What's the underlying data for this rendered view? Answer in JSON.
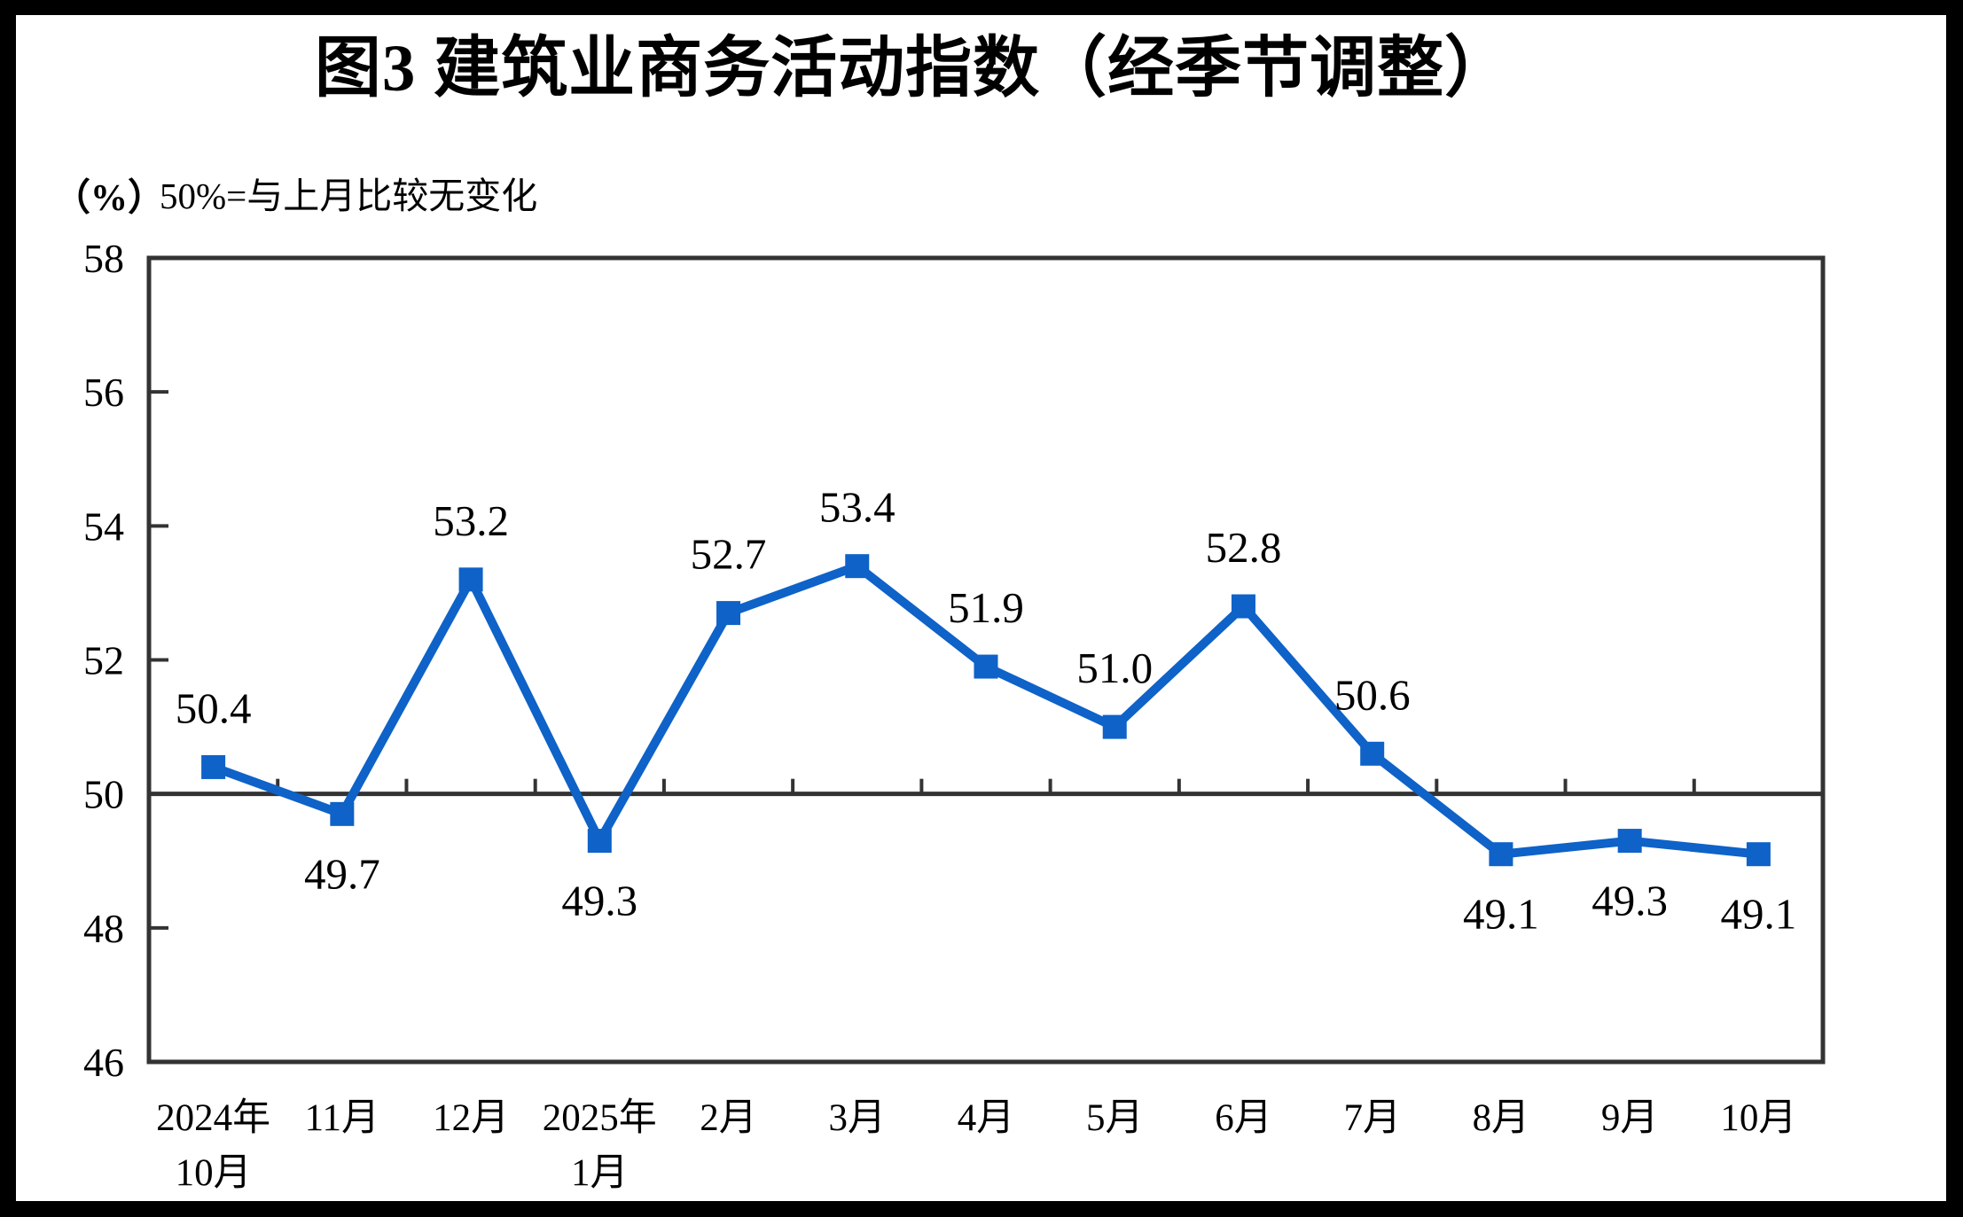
{
  "page": {
    "title": "图3  建筑业商务活动指数（经季节调整）",
    "unit_label": "（%）",
    "note": "50%=与上月比较无变化"
  },
  "chart_data": {
    "type": "line",
    "title": "图3  建筑业商务活动指数（经季节调整）",
    "subtitle": "50%=与上月比较无变化",
    "unit": "（%）",
    "categories": [
      "2024年10月",
      "11月",
      "12月",
      "2025年1月",
      "2月",
      "3月",
      "4月",
      "5月",
      "6月",
      "7月",
      "8月",
      "9月",
      "10月"
    ],
    "x_tick_lines": [
      [
        "2024年",
        "10月"
      ],
      [
        "11月"
      ],
      [
        "12月"
      ],
      [
        "2025年",
        "1月"
      ],
      [
        "2月"
      ],
      [
        "3月"
      ],
      [
        "4月"
      ],
      [
        "5月"
      ],
      [
        "6月"
      ],
      [
        "7月"
      ],
      [
        "8月"
      ],
      [
        "9月"
      ],
      [
        "10月"
      ]
    ],
    "series": [
      {
        "name": "建筑业商务活动指数",
        "values": [
          50.4,
          49.7,
          53.2,
          49.3,
          52.7,
          53.4,
          51.9,
          51.0,
          52.8,
          50.6,
          49.1,
          49.3,
          49.1
        ],
        "data_labels": [
          "50.4",
          "49.7",
          "53.2",
          "49.3",
          "52.7",
          "53.4",
          "51.9",
          "51.0",
          "52.8",
          "50.6",
          "49.1",
          "49.3",
          "49.1"
        ],
        "label_positions": [
          "above",
          "below",
          "above",
          "below",
          "above",
          "above",
          "above",
          "above",
          "above",
          "above",
          "below",
          "below",
          "below"
        ]
      }
    ],
    "ylim": [
      46,
      58
    ],
    "y_ticks": [
      58,
      56,
      54,
      52,
      50,
      48,
      46
    ],
    "reference_line_y": 50,
    "grid": false,
    "legend": false,
    "marker": "square",
    "colors": {
      "series": "#0E62C8",
      "axis": "#333333",
      "text": "#000000",
      "page_background": "#ffffff",
      "frame_background": "#000000"
    }
  }
}
